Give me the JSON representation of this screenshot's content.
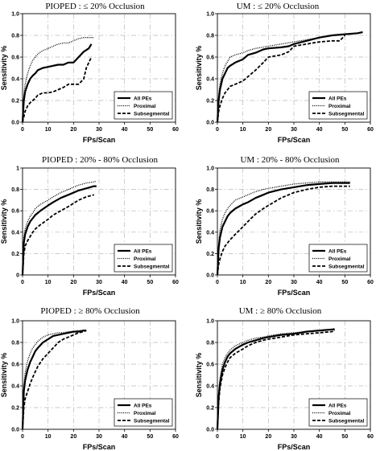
{
  "chart_data": [
    {
      "type": "line",
      "title": "PIOPED : ≤ 20% Occlusion",
      "xlabel": "FPs/Scan",
      "ylabel": "Sensitivity %",
      "xlim": [
        0,
        60
      ],
      "ylim": [
        0,
        1.0
      ],
      "xticks": [
        "0",
        "10",
        "20",
        "30",
        "40",
        "50",
        "60"
      ],
      "yticks": [
        "0.0",
        "0.2",
        "0.4",
        "0.6",
        "0.8",
        "1.0"
      ],
      "grid": true,
      "legend": "bottom-right",
      "series": [
        {
          "name": "All PEs",
          "style": "solid",
          "x": [
            0,
            0.5,
            1,
            2,
            3,
            4,
            5,
            6,
            8,
            10,
            12,
            14,
            16,
            18,
            20,
            22,
            24,
            26,
            27
          ],
          "y": [
            0,
            0.2,
            0.28,
            0.35,
            0.4,
            0.43,
            0.45,
            0.48,
            0.5,
            0.51,
            0.52,
            0.53,
            0.53,
            0.55,
            0.55,
            0.6,
            0.65,
            0.68,
            0.72
          ]
        },
        {
          "name": "Proximal",
          "style": "dotted",
          "x": [
            0,
            0.5,
            1,
            2,
            3,
            4,
            5,
            6,
            8,
            10,
            12,
            14,
            16,
            18,
            20,
            22,
            24,
            26,
            28
          ],
          "y": [
            0,
            0.25,
            0.35,
            0.45,
            0.52,
            0.57,
            0.6,
            0.63,
            0.66,
            0.68,
            0.7,
            0.72,
            0.73,
            0.73,
            0.75,
            0.77,
            0.78,
            0.78,
            0.78
          ]
        },
        {
          "name": "Subsegmental",
          "style": "dashed",
          "x": [
            0,
            0.5,
            1,
            2,
            3,
            4,
            5,
            6,
            8,
            10,
            12,
            14,
            16,
            18,
            20,
            22,
            24,
            25,
            26,
            27
          ],
          "y": [
            0,
            0.05,
            0.1,
            0.15,
            0.18,
            0.2,
            0.22,
            0.25,
            0.27,
            0.27,
            0.28,
            0.3,
            0.32,
            0.35,
            0.35,
            0.35,
            0.4,
            0.5,
            0.55,
            0.6
          ]
        }
      ]
    },
    {
      "type": "line",
      "title": "UM : ≤ 20% Occlusion",
      "xlabel": "FPs/Scan",
      "ylabel": "Sensitivity %",
      "xlim": [
        0,
        60
      ],
      "ylim": [
        0,
        1.0
      ],
      "xticks": [
        "0",
        "10",
        "20",
        "30",
        "40",
        "50",
        "60"
      ],
      "yticks": [
        "0.0",
        "0.2",
        "0.4",
        "0.6",
        "0.8",
        "1.0"
      ],
      "grid": true,
      "legend": "bottom-right",
      "series": [
        {
          "name": "All PEs",
          "style": "solid",
          "x": [
            0,
            0.5,
            1,
            2,
            3,
            4,
            5,
            7,
            10,
            12,
            15,
            18,
            20,
            25,
            28,
            30,
            35,
            40,
            45,
            50,
            55,
            57
          ],
          "y": [
            0,
            0.2,
            0.3,
            0.4,
            0.45,
            0.5,
            0.52,
            0.55,
            0.58,
            0.62,
            0.64,
            0.67,
            0.68,
            0.69,
            0.7,
            0.72,
            0.75,
            0.78,
            0.8,
            0.81,
            0.82,
            0.83
          ]
        },
        {
          "name": "Proximal",
          "style": "dotted",
          "x": [
            0,
            0.5,
            1,
            2,
            3,
            4,
            5,
            7,
            10,
            12,
            15,
            20,
            25,
            30,
            35,
            40,
            45,
            50,
            55,
            57
          ],
          "y": [
            0,
            0.25,
            0.35,
            0.45,
            0.52,
            0.56,
            0.6,
            0.62,
            0.64,
            0.66,
            0.68,
            0.7,
            0.72,
            0.74,
            0.76,
            0.78,
            0.8,
            0.81,
            0.82,
            0.83
          ]
        },
        {
          "name": "Subsegmental",
          "style": "dashed",
          "x": [
            0,
            0.5,
            1,
            2,
            3,
            4,
            5,
            7,
            10,
            12,
            15,
            18,
            20,
            25,
            28,
            30,
            35,
            40,
            45,
            48,
            50
          ],
          "y": [
            0,
            0.1,
            0.15,
            0.22,
            0.27,
            0.3,
            0.33,
            0.35,
            0.38,
            0.42,
            0.48,
            0.55,
            0.6,
            0.62,
            0.65,
            0.7,
            0.72,
            0.74,
            0.75,
            0.75,
            0.8
          ]
        }
      ]
    },
    {
      "type": "line",
      "title": "PIOPED : 20% - 80% Occlusion",
      "xlabel": "FPs/Scan",
      "ylabel": "Sensitivity %",
      "xlim": [
        0,
        60
      ],
      "ylim": [
        0,
        1.0
      ],
      "xticks": [
        "0",
        "10",
        "20",
        "30",
        "40",
        "50",
        "60"
      ],
      "yticks": [
        "0",
        "0.2",
        "0.4",
        "0.6",
        "0.8",
        "1"
      ],
      "grid": true,
      "legend": "bottom-right",
      "series": [
        {
          "name": "All PEs",
          "style": "solid",
          "x": [
            0,
            0.5,
            1,
            2,
            3,
            4,
            5,
            7,
            10,
            12,
            15,
            18,
            20,
            22,
            25,
            28,
            29
          ],
          "y": [
            0,
            0.3,
            0.38,
            0.45,
            0.5,
            0.53,
            0.56,
            0.6,
            0.65,
            0.68,
            0.72,
            0.75,
            0.77,
            0.79,
            0.81,
            0.83,
            0.83
          ]
        },
        {
          "name": "Proximal",
          "style": "dotted",
          "x": [
            0,
            0.5,
            1,
            2,
            3,
            4,
            5,
            7,
            10,
            12,
            15,
            18,
            20,
            22,
            25,
            28,
            29
          ],
          "y": [
            0,
            0.35,
            0.43,
            0.5,
            0.55,
            0.58,
            0.62,
            0.66,
            0.7,
            0.73,
            0.77,
            0.8,
            0.82,
            0.84,
            0.86,
            0.87,
            0.88
          ]
        },
        {
          "name": "Subsegmental",
          "style": "dashed",
          "x": [
            0,
            0.5,
            1,
            2,
            3,
            4,
            5,
            7,
            10,
            12,
            15,
            18,
            20,
            22,
            25,
            28
          ],
          "y": [
            0,
            0.2,
            0.27,
            0.32,
            0.36,
            0.4,
            0.43,
            0.47,
            0.52,
            0.56,
            0.6,
            0.64,
            0.67,
            0.7,
            0.73,
            0.75
          ]
        }
      ]
    },
    {
      "type": "line",
      "title": "UM : 20% - 80% Occlusion",
      "xlabel": "FPs/Scan",
      "ylabel": "Sensitivity %",
      "xlim": [
        0,
        60
      ],
      "ylim": [
        0,
        1.0
      ],
      "xticks": [
        "0",
        "10",
        "20",
        "30",
        "40",
        "50",
        "60"
      ],
      "yticks": [
        "0.0",
        "0.2",
        "0.4",
        "0.6",
        "0.8",
        "1.0"
      ],
      "grid": true,
      "legend": "bottom-right",
      "series": [
        {
          "name": "All PEs",
          "style": "solid",
          "x": [
            0,
            0.5,
            1,
            2,
            3,
            4,
            5,
            7,
            10,
            12,
            15,
            18,
            20,
            25,
            30,
            35,
            40,
            45,
            50,
            52
          ],
          "y": [
            0,
            0.25,
            0.35,
            0.45,
            0.5,
            0.55,
            0.58,
            0.62,
            0.66,
            0.68,
            0.72,
            0.75,
            0.77,
            0.8,
            0.82,
            0.84,
            0.85,
            0.86,
            0.86,
            0.86
          ]
        },
        {
          "name": "Proximal",
          "style": "dotted",
          "x": [
            0,
            0.5,
            1,
            2,
            3,
            4,
            5,
            7,
            10,
            12,
            15,
            18,
            20,
            25,
            30,
            35,
            40,
            45,
            50,
            52
          ],
          "y": [
            0,
            0.3,
            0.42,
            0.52,
            0.58,
            0.62,
            0.65,
            0.7,
            0.73,
            0.75,
            0.78,
            0.8,
            0.81,
            0.83,
            0.85,
            0.86,
            0.87,
            0.87,
            0.87,
            0.87
          ]
        },
        {
          "name": "Subsegmental",
          "style": "dashed",
          "x": [
            0,
            0.5,
            1,
            2,
            3,
            4,
            5,
            7,
            10,
            12,
            15,
            18,
            20,
            25,
            30,
            35,
            40,
            45,
            50,
            52
          ],
          "y": [
            0,
            0.1,
            0.15,
            0.22,
            0.27,
            0.3,
            0.33,
            0.38,
            0.45,
            0.5,
            0.57,
            0.62,
            0.65,
            0.72,
            0.77,
            0.8,
            0.82,
            0.83,
            0.83,
            0.83
          ]
        }
      ]
    },
    {
      "type": "line",
      "title": "PIOPED : ≥ 80% Occlusion",
      "xlabel": "FPs/Scan",
      "ylabel": "Sensitivity %",
      "xlim": [
        0,
        60
      ],
      "ylim": [
        0,
        1.0
      ],
      "xticks": [
        "0",
        "10",
        "20",
        "30",
        "40",
        "50",
        "60"
      ],
      "yticks": [
        "0.0",
        "0.2",
        "0.4",
        "0.6",
        "0.8",
        "1.0"
      ],
      "grid": true,
      "legend": "bottom-right",
      "series": [
        {
          "name": "All PEs",
          "style": "solid",
          "x": [
            0,
            0.5,
            1,
            2,
            3,
            4,
            5,
            6,
            8,
            10,
            12,
            14,
            16,
            18,
            20,
            22,
            24,
            25
          ],
          "y": [
            0,
            0.35,
            0.45,
            0.55,
            0.62,
            0.67,
            0.72,
            0.75,
            0.8,
            0.83,
            0.86,
            0.87,
            0.88,
            0.89,
            0.9,
            0.9,
            0.91,
            0.91
          ]
        },
        {
          "name": "Proximal",
          "style": "dotted",
          "x": [
            0,
            0.5,
            1,
            2,
            3,
            4,
            5,
            6,
            8,
            10,
            12,
            14,
            16,
            18,
            20,
            22,
            24
          ],
          "y": [
            0,
            0.4,
            0.52,
            0.63,
            0.7,
            0.75,
            0.78,
            0.81,
            0.85,
            0.87,
            0.88,
            0.89,
            0.89,
            0.9,
            0.9,
            0.91,
            0.91
          ]
        },
        {
          "name": "Subsegmental",
          "style": "dashed",
          "x": [
            0,
            0.5,
            1,
            2,
            3,
            4,
            5,
            6,
            8,
            10,
            12,
            14,
            16,
            18,
            20,
            22,
            24,
            25
          ],
          "y": [
            0,
            0.2,
            0.28,
            0.35,
            0.42,
            0.48,
            0.53,
            0.58,
            0.65,
            0.7,
            0.75,
            0.8,
            0.83,
            0.85,
            0.87,
            0.89,
            0.9,
            0.91
          ]
        }
      ]
    },
    {
      "type": "line",
      "title": "UM : ≥ 80% Occlusion",
      "xlabel": "FPs/Scan",
      "ylabel": "Sensitivity %",
      "xlim": [
        0,
        60
      ],
      "ylim": [
        0,
        1.0
      ],
      "xticks": [
        "0",
        "10",
        "20",
        "30",
        "40",
        "50",
        "60"
      ],
      "yticks": [
        "0.0",
        "0.2",
        "0.4",
        "0.6",
        "0.8",
        "1.0"
      ],
      "grid": true,
      "legend": "bottom-right",
      "series": [
        {
          "name": "All PEs",
          "style": "solid",
          "x": [
            0,
            0.5,
            1,
            2,
            3,
            4,
            5,
            7,
            10,
            12,
            15,
            18,
            20,
            25,
            30,
            35,
            40,
            45,
            46
          ],
          "y": [
            0,
            0.3,
            0.42,
            0.55,
            0.62,
            0.67,
            0.7,
            0.74,
            0.78,
            0.8,
            0.82,
            0.84,
            0.85,
            0.87,
            0.88,
            0.9,
            0.91,
            0.92,
            0.92
          ]
        },
        {
          "name": "Proximal",
          "style": "dotted",
          "x": [
            0,
            0.5,
            1,
            2,
            3,
            4,
            5,
            7,
            10,
            12,
            15,
            18,
            20,
            25,
            30,
            35,
            40,
            45,
            46
          ],
          "y": [
            0,
            0.35,
            0.47,
            0.6,
            0.66,
            0.7,
            0.73,
            0.77,
            0.8,
            0.82,
            0.84,
            0.85,
            0.86,
            0.88,
            0.89,
            0.9,
            0.91,
            0.92,
            0.93
          ]
        },
        {
          "name": "Subsegmental",
          "style": "dashed",
          "x": [
            0,
            0.5,
            1,
            2,
            3,
            4,
            5,
            7,
            10,
            12,
            15,
            18,
            20,
            25,
            30,
            35,
            40,
            45,
            46
          ],
          "y": [
            0,
            0.25,
            0.38,
            0.5,
            0.57,
            0.62,
            0.66,
            0.7,
            0.74,
            0.77,
            0.8,
            0.82,
            0.83,
            0.85,
            0.87,
            0.88,
            0.89,
            0.9,
            0.91
          ]
        }
      ]
    }
  ]
}
